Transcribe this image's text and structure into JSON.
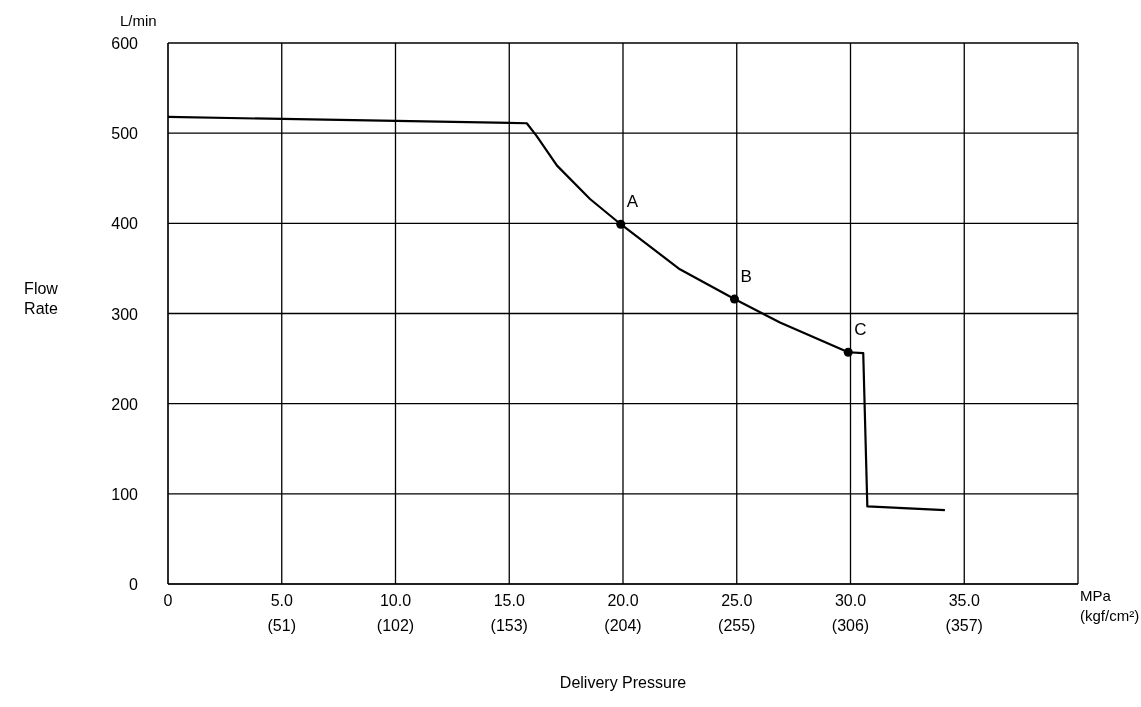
{
  "chart_data": {
    "type": "line",
    "xlabel": "Delivery Pressure",
    "ylabel": "Flow Rate",
    "x2label": "(kgf/cm²)",
    "annotations": [
      "L/min",
      "MPa",
      {
        "text": "A",
        "x": 19.9,
        "y": 399
      },
      {
        "text": "B",
        "x": 24.9,
        "y": 316
      },
      {
        "text": "C",
        "x": 29.9,
        "y": 257
      }
    ],
    "series": [
      {
        "color": "#000000",
        "marker": "none",
        "x": [
          0,
          15.77,
          16.2,
          17.1,
          18.55,
          19.9,
          22.5,
          24.9,
          26.9,
          29.9,
          30.56,
          30.74,
          34.15
        ],
        "values": [
          518,
          511,
          497,
          464,
          427,
          399,
          349,
          316,
          290,
          257,
          256,
          86,
          82
        ]
      },
      {
        "type": "scatter",
        "color": "#000000",
        "marker": "circle",
        "x": [
          19.9,
          24.9,
          29.9
        ],
        "values": [
          399,
          316,
          257
        ]
      }
    ],
    "xlim": [
      0,
      40
    ],
    "xticks": [
      0,
      {
        "value": 5,
        "label": "5.0"
      },
      {
        "value": 10,
        "label": "10.0"
      },
      {
        "value": 15,
        "label": "15.0"
      },
      {
        "value": 20,
        "label": "20.0"
      },
      {
        "value": 25,
        "label": "25.0"
      },
      {
        "value": 30,
        "label": "30.0"
      },
      {
        "value": 35,
        "label": "35.0"
      }
    ],
    "x2lim": [
      0,
      408
    ],
    "x2ticks": [
      {
        "value": 51,
        "label": "(51)"
      },
      {
        "value": 102,
        "label": "(102)"
      },
      {
        "value": 153,
        "label": "(153)"
      },
      {
        "value": 204,
        "label": "(204)"
      },
      {
        "value": 255,
        "label": "(255)"
      },
      {
        "value": 306,
        "label": "(306)"
      },
      {
        "value": 357,
        "label": "(357)"
      }
    ],
    "ylim": [
      0,
      600
    ],
    "yticks": [
      0,
      100,
      200,
      300,
      400,
      500,
      600
    ],
    "grid": true
  }
}
